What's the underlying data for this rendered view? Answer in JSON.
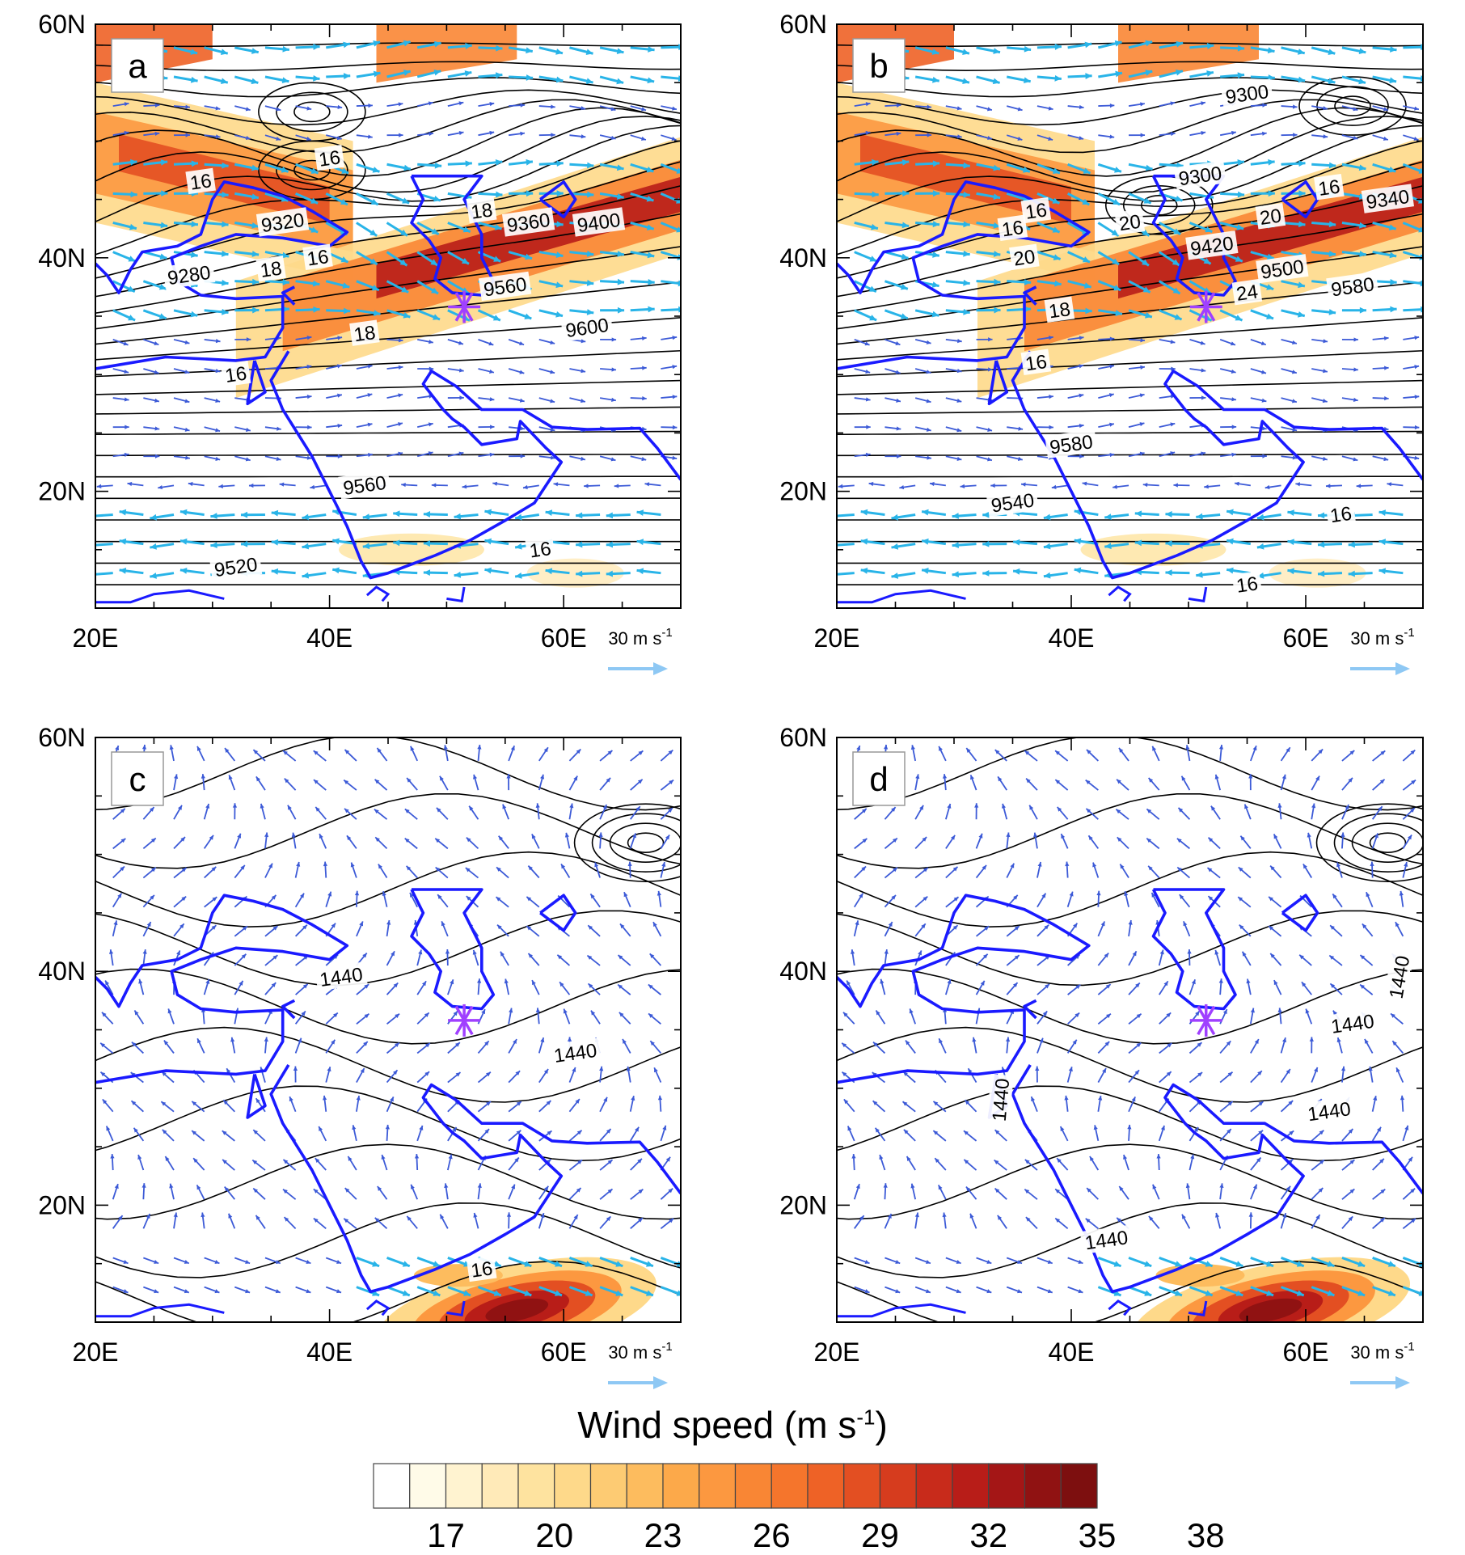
{
  "figure": {
    "panels": [
      {
        "letter": "a",
        "contour_labels": [
          "16",
          "16",
          "18",
          "9280",
          "9320",
          "9360",
          "9400",
          "18",
          "16",
          "9560",
          "18",
          "9600",
          "16",
          "9560",
          "16",
          "9520"
        ],
        "has_jet_shading": true,
        "has_marker": true
      },
      {
        "letter": "b",
        "contour_labels": [
          "9300",
          "9300",
          "16",
          "16",
          "20",
          "9340",
          "16",
          "20",
          "9420",
          "20",
          "9500",
          "24",
          "9580",
          "18",
          "16",
          "9580",
          "9540",
          "16",
          "16"
        ],
        "has_jet_shading": true,
        "has_marker": true
      },
      {
        "letter": "c",
        "contour_labels": [
          "1440",
          "1440",
          "16"
        ],
        "has_jet_shading": false,
        "has_marker": true
      },
      {
        "letter": "d",
        "contour_labels": [
          "1440",
          "1440",
          "1440",
          "1440",
          "1440"
        ],
        "has_jet_shading": false,
        "has_marker": true
      }
    ],
    "x_ticks": [
      "20E",
      "40E",
      "60E"
    ],
    "y_ticks": [
      "60N",
      "40N",
      "20N"
    ],
    "reference_vector": {
      "text": "30 m s",
      "exponent": "-1"
    },
    "colorbar": {
      "title": "Wind speed (m s",
      "title_exponent": "-1",
      "title_close": ")",
      "labels": [
        "17",
        "20",
        "23",
        "26",
        "29",
        "32",
        "35",
        "38"
      ],
      "colors": [
        "#ffffff",
        "#fffbe8",
        "#fff3d0",
        "#ffeab8",
        "#fee39f",
        "#fed98a",
        "#fdcb73",
        "#fdbc5e",
        "#fca94a",
        "#fc9840",
        "#f98634",
        "#f5752c",
        "#ee6226",
        "#e34f22",
        "#d63c1e",
        "#c82b1b",
        "#b81d18",
        "#a41616",
        "#901212",
        "#7d0f0f"
      ]
    },
    "colors": {
      "coastline": "#1a1aff",
      "vector_strong": "#29b4e8",
      "vector_weak": "#3c5ad7",
      "marker": "#a040ff",
      "contour": "#000000"
    }
  }
}
